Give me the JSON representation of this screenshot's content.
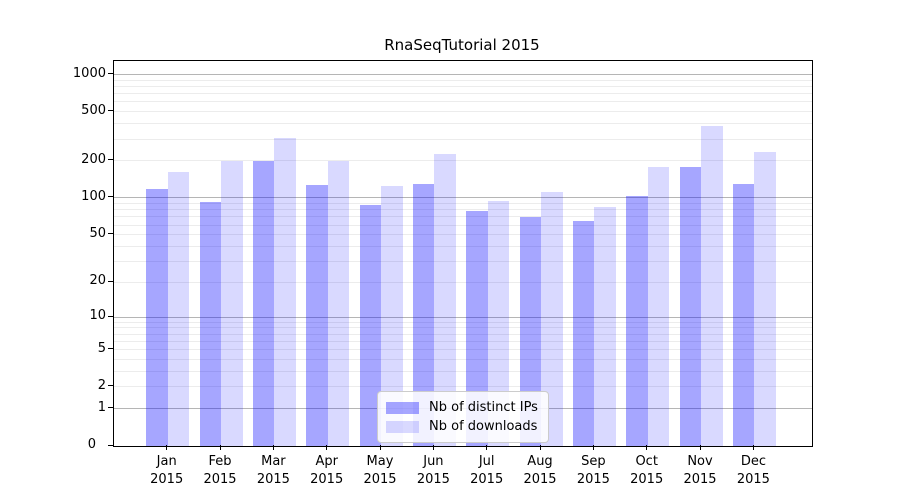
{
  "chart_data": {
    "type": "bar",
    "title": "RnaSeqTutorial 2015",
    "x": {
      "categories": [
        "Jan",
        "Feb",
        "Mar",
        "Apr",
        "May",
        "Jun",
        "Jul",
        "Aug",
        "Sep",
        "Oct",
        "Nov",
        "Dec"
      ],
      "year_label": "2015"
    },
    "series": [
      {
        "name": "Nb of distinct IPs",
        "color": "rgba(0,0,255,0.35)",
        "values": [
          118,
          92,
          200,
          128,
          88,
          129,
          78,
          70,
          65,
          104,
          180,
          129
        ]
      },
      {
        "name": "Nb of downloads",
        "color": "rgba(0,0,255,0.15)",
        "values": [
          163,
          200,
          308,
          199,
          125,
          226,
          95,
          112,
          84,
          179,
          385,
          236
        ]
      }
    ],
    "y_axis": {
      "scale": "log1p",
      "min": 0,
      "max": 1286,
      "tick_values": [
        1000,
        500,
        200,
        100,
        50,
        20,
        10,
        5,
        2,
        1,
        0
      ]
    },
    "gridlines": {
      "major": [
        1,
        10,
        100,
        1000
      ],
      "minor": [
        2,
        3,
        4,
        5,
        6,
        7,
        8,
        9,
        20,
        30,
        40,
        50,
        60,
        70,
        80,
        90,
        200,
        300,
        400,
        500,
        600,
        700,
        800,
        900
      ]
    },
    "legend": {
      "location": "lower center"
    },
    "colors": {
      "background": "#ffffff",
      "spine": "#000000",
      "grid_major": "#b5b5b5",
      "grid_minor": "#ececec",
      "text": "#000000"
    }
  }
}
